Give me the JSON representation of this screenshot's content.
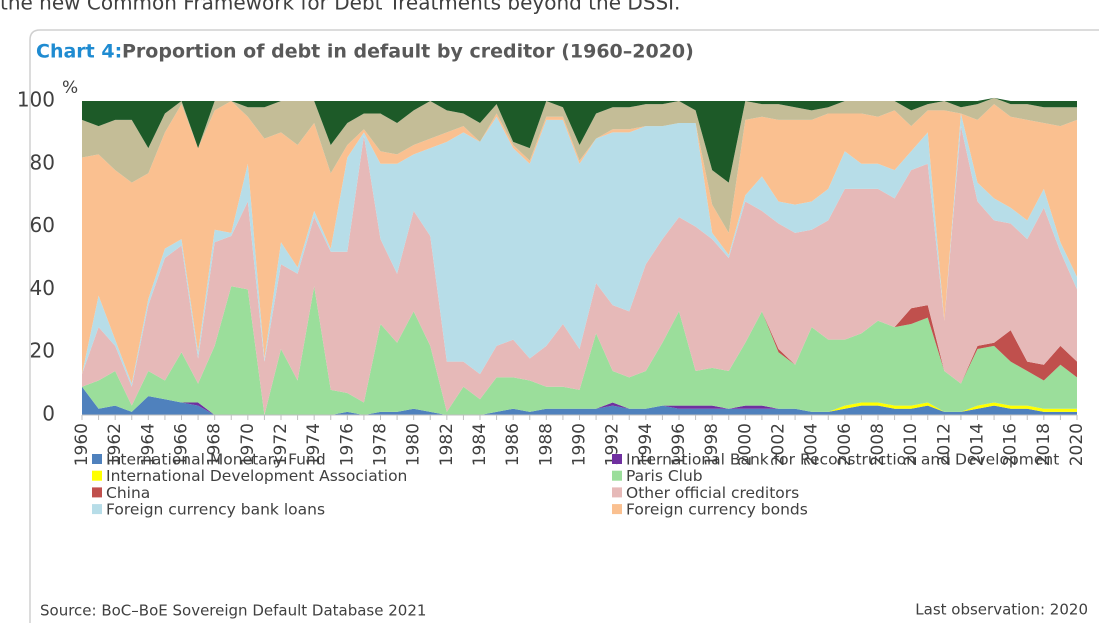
{
  "intro_text": "the new Common Framework for Debt Treatments beyond the DSSI.",
  "chart_data": {
    "type": "stacked_area",
    "title_label": "Chart 4:",
    "title": "Proportion of debt in default by creditor (1960–2020)",
    "y_label": "%",
    "categories": [
      "1960",
      null,
      "1962",
      null,
      "1964",
      null,
      "1966",
      null,
      "1968",
      null,
      "1970",
      null,
      "1972",
      null,
      "1974",
      null,
      "1976",
      null,
      "1978",
      null,
      "1980",
      null,
      "1982",
      null,
      "1984",
      null,
      "1986",
      null,
      "1988",
      null,
      "1990",
      null,
      "1992",
      null,
      "1994",
      null,
      "1996",
      null,
      "1998",
      null,
      "2000",
      null,
      "2002",
      null,
      "2004",
      null,
      "2006",
      null,
      "2008",
      null,
      "2010",
      null,
      "2012",
      null,
      "2014",
      null,
      "2016",
      null,
      "2018",
      null,
      "2020"
    ],
    "ylim": [
      0,
      100
    ],
    "yticks": [
      0,
      20,
      40,
      60,
      80,
      100
    ],
    "grid": false,
    "series": [
      {
        "name": "International Monetary Fund",
        "color": "#4f81bd",
        "values": [
          9,
          2,
          3,
          1,
          6,
          5,
          4,
          3,
          0,
          0,
          0,
          0,
          0,
          0,
          0,
          0,
          1,
          0,
          1,
          1,
          2,
          1,
          0,
          0,
          0,
          1,
          2,
          1,
          2,
          2,
          2,
          2,
          3,
          2,
          2,
          3,
          2,
          2,
          2,
          2,
          2,
          2,
          2,
          2,
          1,
          1,
          2,
          3,
          3,
          2,
          2,
          3,
          1,
          1,
          2,
          3,
          2,
          2,
          1,
          1,
          1
        ]
      },
      {
        "name": "International Bank for Reconstruction and Development",
        "color": "#7030a0",
        "values": [
          0,
          0,
          0,
          0,
          0,
          0,
          0,
          1,
          0,
          0,
          0,
          0,
          0,
          0,
          0,
          0,
          0,
          0,
          0,
          0,
          0,
          0,
          0,
          0,
          0,
          0,
          0,
          0,
          0,
          0,
          0,
          0,
          1,
          0,
          0,
          0,
          1,
          1,
          1,
          0,
          1,
          1,
          0,
          0,
          0,
          0,
          0,
          0,
          0,
          0,
          0,
          0,
          0,
          0,
          0,
          0,
          0,
          0,
          0,
          0,
          0
        ]
      },
      {
        "name": "International Development Association",
        "color": "#ffff00",
        "values": [
          0,
          0,
          0,
          0,
          0,
          0,
          0,
          0,
          0,
          0,
          0,
          0,
          0,
          0,
          0,
          0,
          0,
          0,
          0,
          0,
          0,
          0,
          0,
          0,
          0,
          0,
          0,
          0,
          0,
          0,
          0,
          0,
          0,
          0,
          0,
          0,
          0,
          0,
          0,
          0,
          0,
          0,
          0,
          0,
          0,
          0,
          1,
          1,
          1,
          1,
          1,
          1,
          0,
          0,
          1,
          1,
          1,
          1,
          1,
          1,
          1
        ]
      },
      {
        "name": "Paris Club",
        "color": "#9bde9b",
        "values": [
          0,
          9,
          11,
          2,
          8,
          6,
          16,
          6,
          22,
          41,
          40,
          0,
          21,
          11,
          41,
          8,
          6,
          4,
          28,
          22,
          31,
          21,
          1,
          9,
          5,
          11,
          10,
          10,
          7,
          7,
          6,
          24,
          10,
          10,
          12,
          20,
          30,
          11,
          12,
          12,
          20,
          30,
          18,
          14,
          27,
          23,
          21,
          22,
          26,
          25,
          26,
          27,
          13,
          9,
          18,
          18,
          14,
          11,
          9,
          14,
          10
        ]
      },
      {
        "name": "China",
        "color": "#c0504d",
        "values": [
          0,
          0,
          0,
          0,
          0,
          0,
          0,
          0,
          0,
          0,
          0,
          0,
          0,
          0,
          0,
          0,
          0,
          0,
          0,
          0,
          0,
          0,
          0,
          0,
          0,
          0,
          0,
          0,
          0,
          0,
          0,
          0,
          0,
          0,
          0,
          0,
          0,
          0,
          0,
          0,
          0,
          0,
          1,
          0,
          0,
          0,
          0,
          0,
          0,
          0,
          5,
          4,
          0,
          0,
          1,
          1,
          10,
          3,
          5,
          6,
          5
        ]
      },
      {
        "name": "Other official creditors",
        "color": "#e6b9b8",
        "values": [
          4,
          17,
          8,
          6,
          21,
          39,
          34,
          8,
          33,
          16,
          28,
          17,
          27,
          34,
          22,
          44,
          45,
          85,
          27,
          22,
          32,
          35,
          16,
          8,
          8,
          10,
          12,
          7,
          13,
          20,
          13,
          16,
          21,
          21,
          34,
          33,
          30,
          46,
          41,
          36,
          45,
          32,
          40,
          42,
          31,
          38,
          48,
          46,
          42,
          41,
          44,
          45,
          16,
          82,
          46,
          39,
          34,
          39,
          50,
          30,
          23
        ]
      },
      {
        "name": "Foreign currency bank loans",
        "color": "#b7dde8",
        "values": [
          0,
          10,
          2,
          1,
          2,
          3,
          2,
          2,
          4,
          1,
          12,
          1,
          7,
          2,
          2,
          1,
          30,
          1,
          24,
          35,
          18,
          28,
          70,
          73,
          74,
          73,
          61,
          62,
          72,
          65,
          59,
          46,
          55,
          57,
          44,
          36,
          30,
          33,
          2,
          1,
          2,
          11,
          7,
          9,
          9,
          10,
          12,
          8,
          8,
          9,
          6,
          10,
          0,
          4,
          6,
          7,
          5,
          6,
          6,
          3,
          4
        ]
      },
      {
        "name": "Foreign currency bonds",
        "color": "#fac090",
        "values": [
          69,
          45,
          54,
          64,
          40,
          37,
          43,
          65,
          38,
          42,
          15,
          70,
          35,
          39,
          28,
          24,
          4,
          1,
          4,
          3,
          3,
          3,
          3,
          2,
          0,
          1,
          1,
          1,
          1,
          1,
          1,
          0,
          1,
          1,
          0,
          0,
          0,
          0,
          9,
          7,
          24,
          19,
          26,
          27,
          26,
          24,
          12,
          16,
          15,
          19,
          8,
          7,
          67,
          0,
          20,
          30,
          29,
          32,
          21,
          37,
          50
        ]
      },
      {
        "color": "#c4bd97",
        "values": [
          12,
          9,
          16,
          20,
          8,
          6,
          1,
          0,
          3,
          0,
          3,
          10,
          10,
          14,
          7,
          9,
          7,
          5,
          12,
          10,
          11,
          12,
          7,
          4,
          6,
          3,
          1,
          4,
          5,
          3,
          5,
          8,
          7,
          7,
          7,
          7,
          7,
          4,
          11,
          16,
          6,
          4,
          5,
          4,
          3,
          2,
          4,
          4,
          5,
          3,
          5,
          2,
          3,
          2,
          5,
          2,
          4,
          5,
          5,
          6,
          4
        ]
      },
      {
        "color": "#1d5a28",
        "values": [
          6,
          8,
          6,
          6,
          15,
          4,
          0,
          15,
          0,
          0,
          2,
          2,
          0,
          0,
          0,
          14,
          7,
          4,
          4,
          7,
          3,
          0,
          3,
          4,
          7,
          1,
          13,
          15,
          0,
          2,
          14,
          4,
          2,
          2,
          1,
          1,
          0,
          3,
          22,
          26,
          0,
          1,
          1,
          2,
          3,
          2,
          0,
          0,
          0,
          0,
          3,
          1,
          0,
          2,
          1,
          0,
          1,
          1,
          2,
          2,
          2
        ]
      }
    ],
    "source": "Source: BoC–BoE Sovereign Default Database 2021",
    "last_observation": "Last observation: 2020"
  }
}
